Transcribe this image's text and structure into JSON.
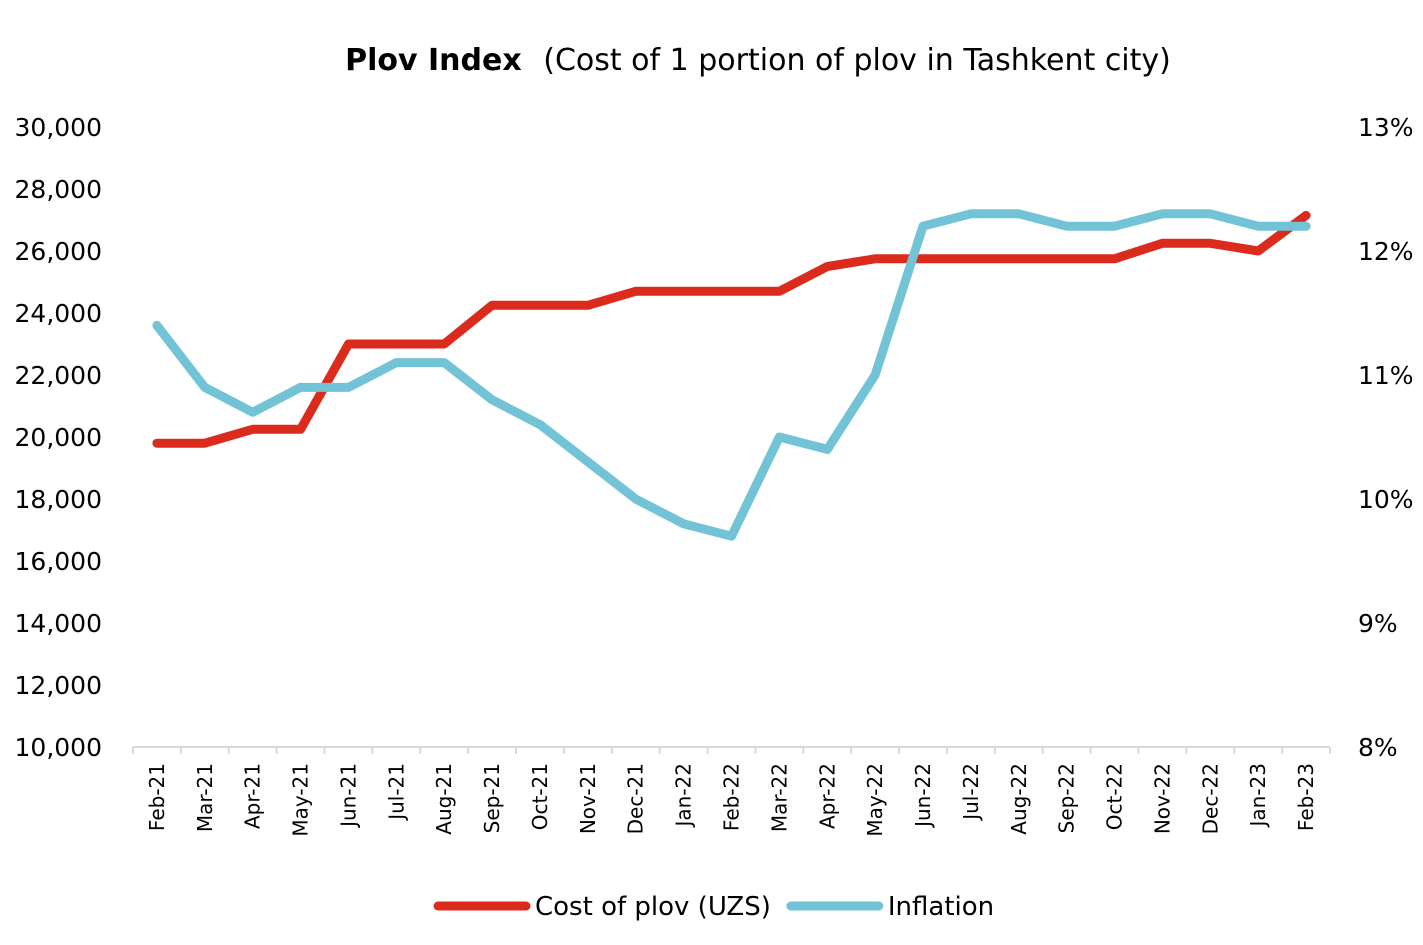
{
  "chart_data": {
    "type": "line",
    "title": "Plov Index",
    "subtitle": "(Cost of 1 portion of plov in Tashkent city)",
    "categories": [
      "Feb-21",
      "Mar-21",
      "Apr-21",
      "May-21",
      "Jun-21",
      "Jul-21",
      "Aug-21",
      "Sep-21",
      "Oct-21",
      "Nov-21",
      "Dec-21",
      "Jan-22",
      "Feb-22",
      "Mar-22",
      "Apr-22",
      "May-22",
      "Jun-22",
      "Jul-22",
      "Aug-22",
      "Sep-22",
      "Oct-22",
      "Nov-22",
      "Dec-22",
      "Jan-23",
      "Feb-23"
    ],
    "y_left": {
      "ylim": [
        10000,
        30000
      ],
      "ticks": [
        10000,
        12000,
        14000,
        16000,
        18000,
        20000,
        22000,
        24000,
        26000,
        28000,
        30000
      ],
      "tick_labels": [
        "10,000",
        "12,000",
        "14,000",
        "16,000",
        "18,000",
        "20,000",
        "22,000",
        "24,000",
        "26,000",
        "28,000",
        "30,000"
      ]
    },
    "y_right": {
      "ylim": [
        8,
        13
      ],
      "ticks": [
        8,
        9,
        10,
        11,
        12,
        13
      ],
      "tick_labels": [
        "8%",
        "9%",
        "10%",
        "11%",
        "12%",
        "13%"
      ]
    },
    "series": [
      {
        "name": "Cost of plov (UZS)",
        "axis": "left",
        "color": "#DB2B1D",
        "values": [
          19800,
          19800,
          20250,
          20250,
          23000,
          23000,
          23000,
          24250,
          24250,
          24250,
          24700,
          24700,
          24700,
          24700,
          25500,
          25750,
          25750,
          25750,
          25750,
          25750,
          25750,
          26250,
          26250,
          26000,
          27150
        ]
      },
      {
        "name": "Inflation",
        "axis": "right",
        "color": "#71C3D5",
        "values": [
          11.4,
          10.9,
          10.7,
          10.9,
          10.9,
          11.1,
          11.1,
          10.8,
          10.6,
          10.3,
          10.0,
          9.8,
          9.7,
          10.5,
          10.4,
          11.0,
          12.2,
          12.3,
          12.3,
          12.2,
          12.2,
          12.3,
          12.3,
          12.2,
          12.2
        ]
      }
    ],
    "legend": "bottom-center",
    "grid": false
  }
}
